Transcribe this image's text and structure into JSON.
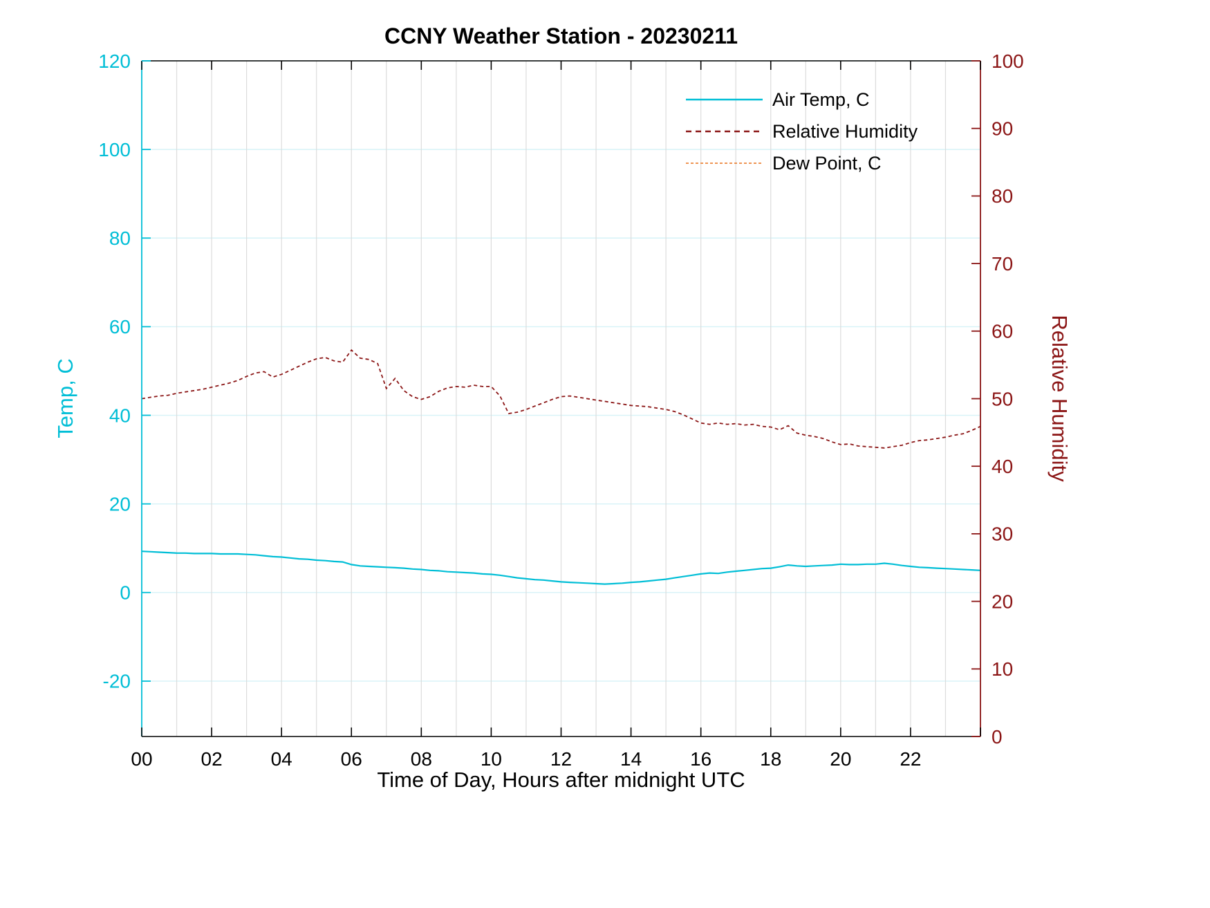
{
  "chart_data": {
    "type": "line",
    "title": "CCNY Weather Station - 20230211",
    "xlabel": "Time of Day, Hours after midnight UTC",
    "xlim": [
      0,
      24
    ],
    "x_tick_values": [
      0,
      2,
      4,
      6,
      8,
      10,
      12,
      14,
      16,
      18,
      20,
      22
    ],
    "x_tick_labels": [
      "00",
      "02",
      "04",
      "06",
      "08",
      "10",
      "12",
      "14",
      "16",
      "18",
      "20",
      "22"
    ],
    "left_axis": {
      "label": "Temp, C",
      "color": "#00BED6",
      "lim": [
        -32.5,
        120
      ],
      "tick_values": [
        -20,
        0,
        20,
        40,
        60,
        80,
        100,
        120
      ]
    },
    "right_axis": {
      "label": "Relative Humidity",
      "color": "#8B1515",
      "lim": [
        0,
        100
      ],
      "tick_values": [
        0,
        10,
        20,
        30,
        40,
        50,
        60,
        70,
        80,
        90,
        100
      ]
    },
    "grid": {
      "horizontal_color": "#D6F2F7",
      "vertical_color": "#DCDCDC",
      "vertical_every_hours": 1
    },
    "legend": [
      {
        "label": "Air Temp, C",
        "color": "#00BED6",
        "style": "solid"
      },
      {
        "label": "Relative Humidity",
        "color": "#8B1515",
        "style": "dashed"
      },
      {
        "label": "Dew Point, C",
        "color": "#E8701A",
        "style": "dashdot"
      }
    ],
    "x": [
      0,
      0.25,
      0.5,
      0.75,
      1,
      1.25,
      1.5,
      1.75,
      2,
      2.25,
      2.5,
      2.75,
      3,
      3.25,
      3.5,
      3.75,
      4,
      4.25,
      4.5,
      4.75,
      5,
      5.25,
      5.5,
      5.75,
      6,
      6.25,
      6.5,
      6.75,
      7,
      7.25,
      7.5,
      7.75,
      8,
      8.25,
      8.5,
      8.75,
      9,
      9.25,
      9.5,
      9.75,
      10,
      10.25,
      10.5,
      10.75,
      11,
      11.25,
      11.5,
      11.75,
      12,
      12.25,
      12.5,
      12.75,
      13,
      13.25,
      13.5,
      13.75,
      14,
      14.25,
      14.5,
      14.75,
      15,
      15.25,
      15.5,
      15.75,
      16,
      16.25,
      16.5,
      16.75,
      17,
      17.25,
      17.5,
      17.75,
      18,
      18.25,
      18.5,
      18.75,
      19,
      19.25,
      19.5,
      19.75,
      20,
      20.25,
      20.5,
      20.75,
      21,
      21.25,
      21.5,
      21.75,
      22,
      22.25,
      22.5,
      22.75,
      23,
      23.25,
      23.5,
      23.75,
      24
    ],
    "series": [
      {
        "name": "Air Temp, C",
        "axis": "left",
        "color": "#00BED6",
        "style": "solid",
        "width": 2.2,
        "visible": true,
        "values": [
          9.3,
          9.2,
          9.1,
          9.0,
          8.9,
          8.9,
          8.8,
          8.8,
          8.8,
          8.7,
          8.7,
          8.7,
          8.6,
          8.5,
          8.3,
          8.1,
          8.0,
          7.8,
          7.6,
          7.5,
          7.3,
          7.2,
          7.0,
          6.9,
          6.3,
          6.0,
          5.9,
          5.8,
          5.7,
          5.6,
          5.5,
          5.3,
          5.2,
          5.0,
          4.9,
          4.7,
          4.6,
          4.5,
          4.4,
          4.2,
          4.1,
          3.9,
          3.6,
          3.3,
          3.1,
          2.9,
          2.8,
          2.6,
          2.4,
          2.3,
          2.2,
          2.1,
          2.0,
          1.9,
          2.0,
          2.1,
          2.3,
          2.4,
          2.6,
          2.8,
          3.0,
          3.3,
          3.6,
          3.9,
          4.2,
          4.4,
          4.3,
          4.6,
          4.8,
          5.0,
          5.2,
          5.4,
          5.5,
          5.8,
          6.2,
          6.0,
          5.9,
          6.0,
          6.1,
          6.2,
          6.4,
          6.3,
          6.3,
          6.4,
          6.4,
          6.6,
          6.4,
          6.1,
          5.9,
          5.7,
          5.6,
          5.5,
          5.4,
          5.3,
          5.2,
          5.1,
          5.0
        ]
      },
      {
        "name": "Relative Humidity",
        "axis": "right",
        "color": "#8B1515",
        "style": "dashed",
        "width": 1.8,
        "visible": true,
        "values": [
          50.0,
          50.2,
          50.4,
          50.5,
          50.8,
          51.0,
          51.2,
          51.4,
          51.7,
          52.0,
          52.3,
          52.7,
          53.3,
          53.8,
          54.0,
          53.2,
          53.6,
          54.2,
          54.8,
          55.4,
          55.9,
          56.1,
          55.6,
          55.4,
          57.2,
          56.0,
          55.8,
          55.2,
          51.5,
          53.0,
          51.2,
          50.3,
          49.9,
          50.3,
          51.1,
          51.6,
          51.8,
          51.7,
          52.0,
          51.8,
          51.8,
          50.4,
          47.8,
          48.0,
          48.4,
          48.9,
          49.4,
          49.9,
          50.3,
          50.4,
          50.2,
          50.0,
          49.8,
          49.6,
          49.4,
          49.2,
          49.0,
          48.9,
          48.8,
          48.6,
          48.4,
          48.1,
          47.6,
          47.0,
          46.4,
          46.2,
          46.4,
          46.2,
          46.3,
          46.1,
          46.2,
          45.9,
          45.8,
          45.4,
          46.0,
          44.9,
          44.6,
          44.4,
          44.1,
          43.6,
          43.2,
          43.3,
          43.0,
          42.9,
          42.8,
          42.7,
          42.9,
          43.1,
          43.5,
          43.8,
          43.9,
          44.1,
          44.3,
          44.6,
          44.8,
          45.3,
          45.9
        ]
      },
      {
        "name": "Dew Point, C",
        "axis": "left",
        "color": "#E8701A",
        "style": "dashdot",
        "width": 1.5,
        "visible": false,
        "values": []
      }
    ]
  }
}
